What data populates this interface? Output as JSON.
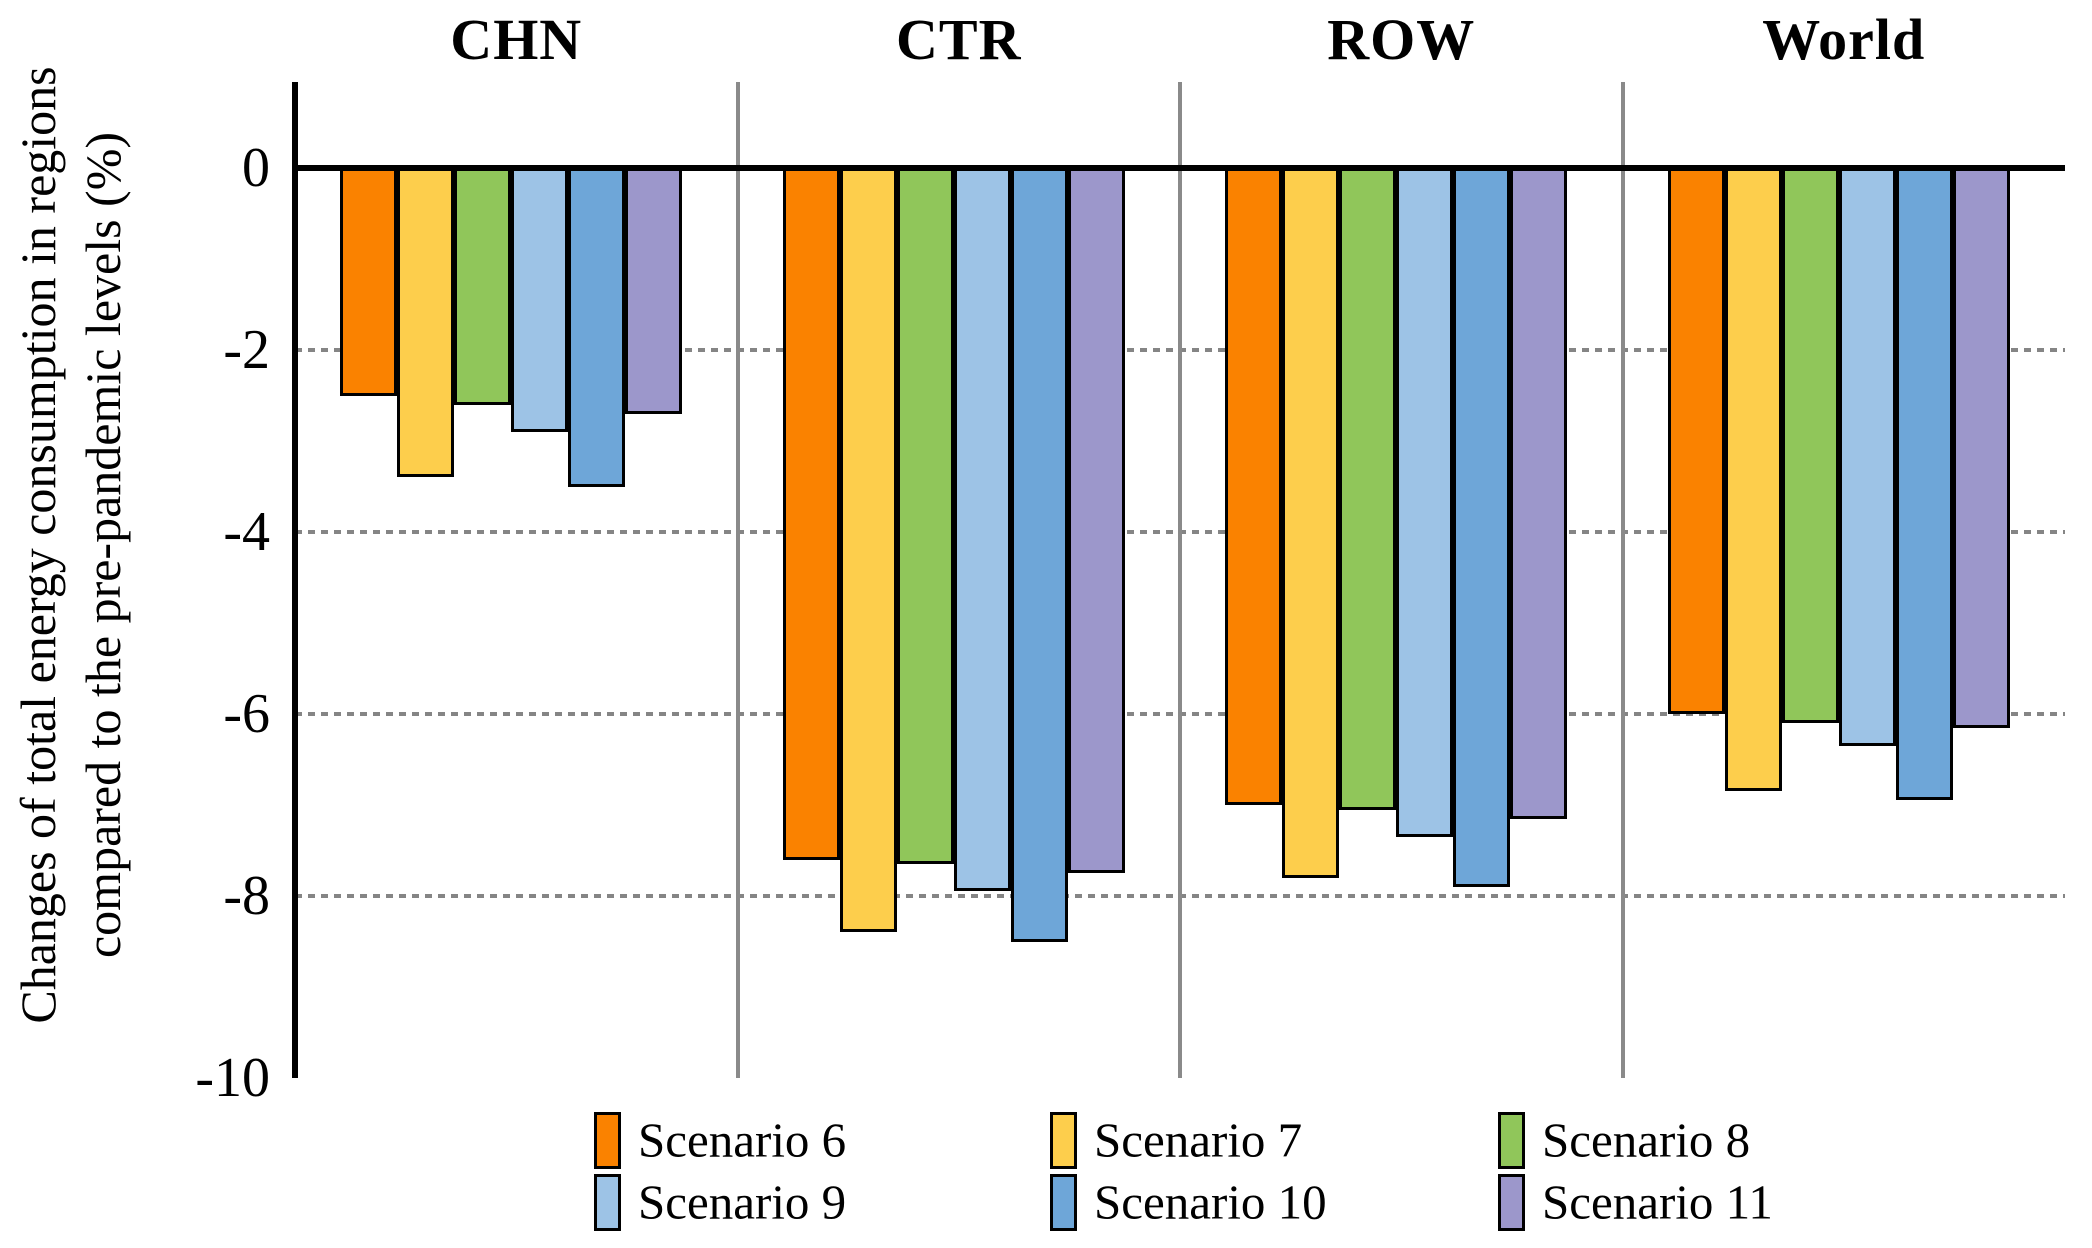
{
  "chart_data": {
    "type": "bar",
    "title": "",
    "ylabel_line1": "Changes of total energy consumption in regions",
    "ylabel_line2": "compared to the pre-pandemic levels (%)",
    "groups": [
      "CHN",
      "CTR",
      "ROW",
      "World"
    ],
    "series": [
      {
        "name": "Scenario 6",
        "color": "#FA8200",
        "values": [
          -2.5,
          -7.6,
          -7.0,
          -6.0
        ]
      },
      {
        "name": "Scenario 7",
        "color": "#FDCE4C",
        "values": [
          -3.4,
          -8.4,
          -7.8,
          -6.85
        ]
      },
      {
        "name": "Scenario 8",
        "color": "#90C65A",
        "values": [
          -2.6,
          -7.65,
          -7.05,
          -6.1
        ]
      },
      {
        "name": "Scenario 9",
        "color": "#9DC3E6",
        "values": [
          -2.9,
          -7.95,
          -7.35,
          -6.35
        ]
      },
      {
        "name": "Scenario 10",
        "color": "#6EA6D8",
        "values": [
          -3.5,
          -8.5,
          -7.9,
          -6.95
        ]
      },
      {
        "name": "Scenario 11",
        "color": "#9C97CB",
        "values": [
          -2.7,
          -7.75,
          -7.15,
          -6.15
        ]
      }
    ],
    "yticks": [
      0,
      -2,
      -4,
      -6,
      -8,
      -10
    ],
    "ytick_labels": [
      "0",
      "-2",
      "-4",
      "-6",
      "-8",
      "-10"
    ],
    "grid_ticks": [
      -2,
      -4,
      -6,
      -8
    ],
    "ylim": [
      0,
      -10
    ],
    "grid": "horizontal dotted lines at -2, -4, -6, -8",
    "legend_position": "bottom",
    "style": {
      "axis_color": "#000000",
      "grid_color": "#858585",
      "separator_color": "#8A8A8A",
      "background": "#FFFFFF"
    }
  }
}
